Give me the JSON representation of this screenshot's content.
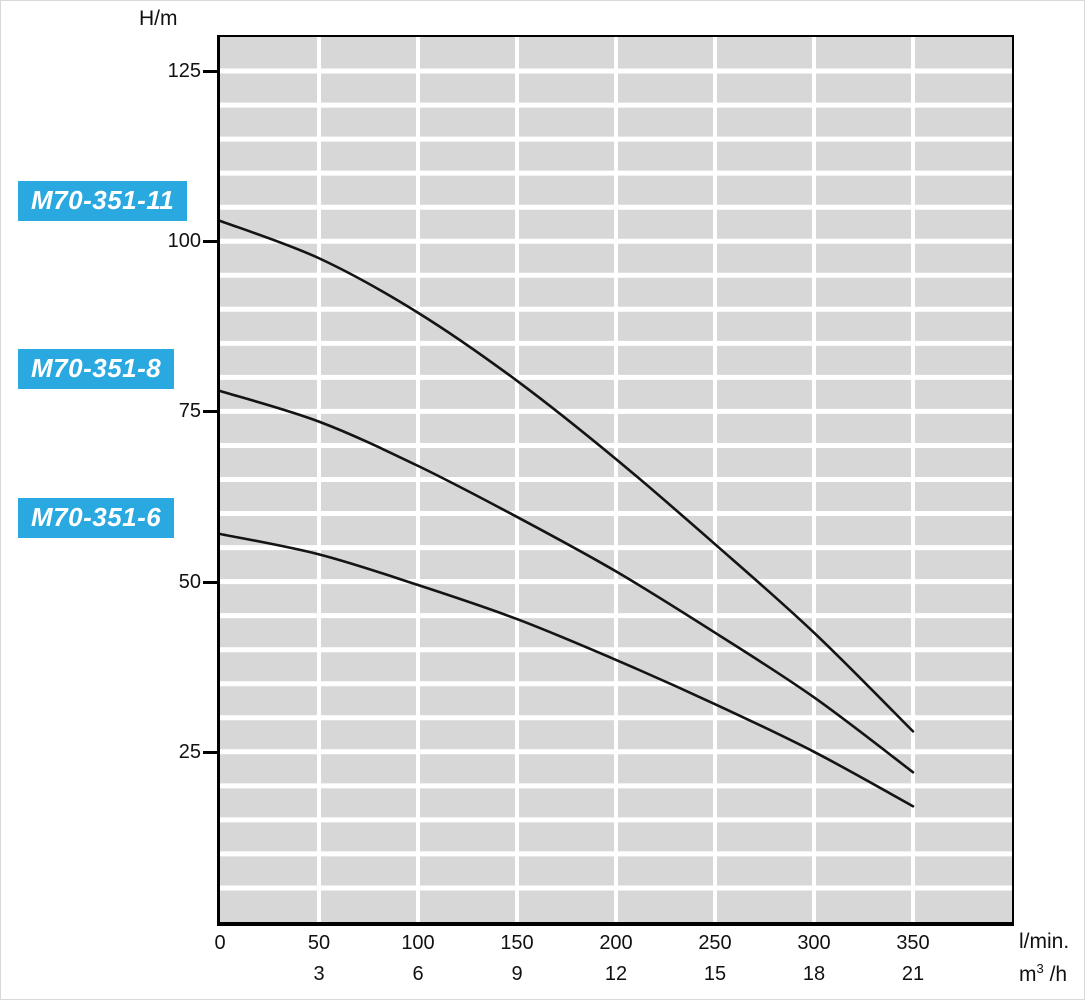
{
  "axis": {
    "y_unit": "H/m",
    "x_unit_primary": "l/min.",
    "x_unit_secondary": {
      "base": "m",
      "sup": "3",
      "rest": " /h"
    }
  },
  "series_labels": [
    {
      "text": "M70-351-11"
    },
    {
      "text": "M70-351-8"
    },
    {
      "text": "M70-351-6"
    }
  ],
  "colors": {
    "label_bg": "#29A9E0",
    "label_text": "#FFFFFF",
    "plot_bg": "#D7D7D7",
    "grid_line": "#FFFFFF",
    "curve": "#141414",
    "axis": "#000000"
  },
  "chart_data": {
    "type": "line",
    "title": "Pump head curves (H vs Q) for M70-351 series",
    "xlabel": "l/min.",
    "xlabel_secondary": "m3/h",
    "ylabel": "H/m",
    "xlim": [
      0,
      400
    ],
    "ylim": [
      0,
      130
    ],
    "grid": "gray plot background with white gridlines",
    "grid_x_step": 50,
    "grid_y_step": 5,
    "legend_position": "labels at left margin next to curve starts",
    "y_ticks": [
      25,
      50,
      75,
      100,
      125
    ],
    "x_ticks": [
      {
        "lmin": "0",
        "m3h": ""
      },
      {
        "lmin": "50",
        "m3h": "3"
      },
      {
        "lmin": "100",
        "m3h": "6"
      },
      {
        "lmin": "150",
        "m3h": "9"
      },
      {
        "lmin": "200",
        "m3h": "12"
      },
      {
        "lmin": "250",
        "m3h": "15"
      },
      {
        "lmin": "300",
        "m3h": "18"
      },
      {
        "lmin": "350",
        "m3h": "21"
      }
    ],
    "series": [
      {
        "name": "M70-351-11",
        "x": [
          0,
          50,
          100,
          150,
          200,
          250,
          300,
          350
        ],
        "y": [
          103,
          97.5,
          89.5,
          79.5,
          68,
          55.5,
          42.5,
          28
        ]
      },
      {
        "name": "M70-351-8",
        "x": [
          0,
          50,
          100,
          150,
          200,
          250,
          300,
          350
        ],
        "y": [
          78,
          73.5,
          67,
          59.5,
          51.5,
          42.5,
          33,
          22
        ]
      },
      {
        "name": "M70-351-6",
        "x": [
          0,
          50,
          100,
          150,
          200,
          250,
          300,
          350
        ],
        "y": [
          57,
          54,
          49.5,
          44.5,
          38.5,
          32,
          25,
          17
        ]
      }
    ]
  }
}
